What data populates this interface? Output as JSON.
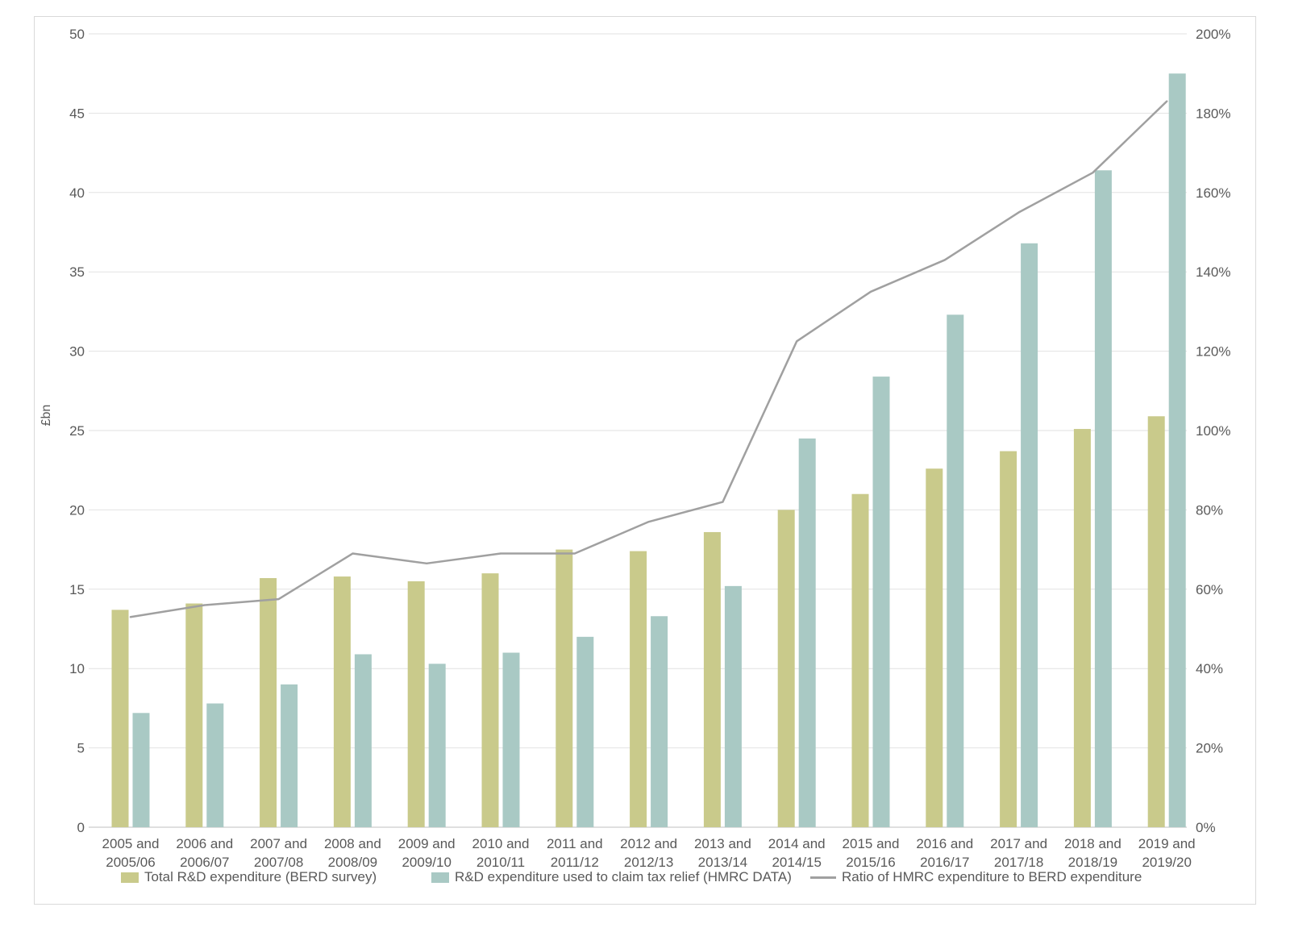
{
  "chart_data": {
    "type": "bar",
    "subtype": "grouped-bars-with-line-overlay",
    "title": "",
    "categories_line1": [
      "2005 and",
      "2006 and",
      "2007 and",
      "2008 and",
      "2009 and",
      "2010 and",
      "2011 and",
      "2012 and",
      "2013 and",
      "2014 and",
      "2015 and",
      "2016 and",
      "2017 and",
      "2018 and",
      "2019 and"
    ],
    "categories_line2": [
      "2005/06",
      "2006/07",
      "2007/08",
      "2008/09",
      "2009/10",
      "2010/11",
      "2011/12",
      "2012/13",
      "2013/14",
      "2014/15",
      "2015/16",
      "2016/17",
      "2017/18",
      "2018/19",
      "2019/20"
    ],
    "series": [
      {
        "name": "Total R&D expenditure (BERD survey)",
        "type": "bar",
        "axis": "left",
        "color": "#c9ca8b",
        "values": [
          13.7,
          14.1,
          15.7,
          15.8,
          15.5,
          16.0,
          17.5,
          17.4,
          18.6,
          20.0,
          21.0,
          22.6,
          23.7,
          25.1,
          25.9
        ]
      },
      {
        "name": "R&D expenditure used to claim tax relief (HMRC DATA)",
        "type": "bar",
        "axis": "left",
        "color": "#a9c9c4",
        "values": [
          7.2,
          7.8,
          9.0,
          10.9,
          10.3,
          11.0,
          12.0,
          13.3,
          15.2,
          24.5,
          28.4,
          32.3,
          36.8,
          41.4,
          47.5
        ]
      },
      {
        "name": "Ratio of HMRC expenditure to BERD expenditure",
        "type": "line",
        "axis": "right",
        "color": "#a0a0a0",
        "values_pct": [
          53,
          56,
          57.5,
          69,
          66.5,
          69,
          69,
          77,
          82,
          122.5,
          135,
          143,
          155,
          165,
          183
        ]
      }
    ],
    "left_axis": {
      "title": "£bn",
      "min": 0,
      "max": 50,
      "step": 5,
      "tick_labels": [
        "0",
        "5",
        "10",
        "15",
        "20",
        "25",
        "30",
        "35",
        "40",
        "45",
        "50"
      ]
    },
    "right_axis": {
      "title": "",
      "min": 0,
      "max": 200,
      "step": 20,
      "suffix": "%",
      "tick_labels": [
        "0%",
        "20%",
        "40%",
        "60%",
        "80%",
        "100%",
        "120%",
        "140%",
        "160%",
        "180%",
        "200%"
      ]
    },
    "grid": true,
    "legend_position": "bottom"
  },
  "colors": {
    "bar_berd": "#c9ca8b",
    "bar_hmrc": "#a9c9c4",
    "ratio_line": "#a0a0a0",
    "gridline": "#e2e2e2",
    "axis_line": "#bfbfbf",
    "text": "#595959",
    "frame_border": "#d9d9d9",
    "background": "#ffffff"
  }
}
